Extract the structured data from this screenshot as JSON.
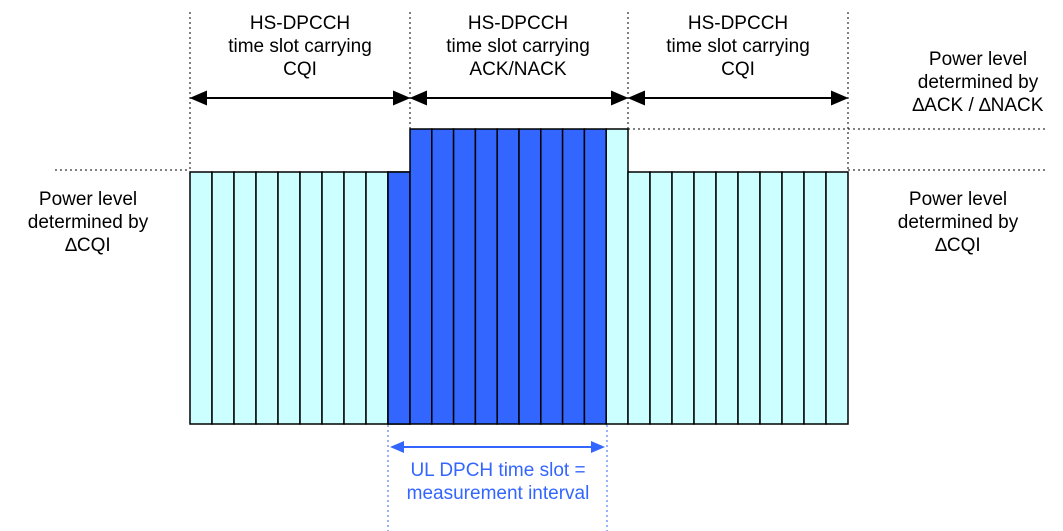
{
  "labels": {
    "slot_left": [
      "HS-DPCCH",
      "time slot carrying",
      "CQI"
    ],
    "slot_middle": [
      "HS-DPCCH",
      "time slot carrying",
      "ACK/NACK"
    ],
    "slot_right": [
      "HS-DPCCH",
      "time slot carrying",
      "CQI"
    ],
    "power_ack": [
      "Power level",
      "determined by",
      "∆ACK / ∆NACK"
    ],
    "power_cqi_left": [
      "Power level",
      "determined by",
      "∆CQI"
    ],
    "power_cqi_right": [
      "Power level",
      "determined by",
      "∆CQI"
    ],
    "measurement": [
      "UL DPCH time slot =",
      "measurement interval"
    ]
  },
  "colors": {
    "light_fill": "#ccffff",
    "dark_fill": "#3366ff",
    "measure_blue": "#3366ff",
    "stroke": "#000000"
  }
}
